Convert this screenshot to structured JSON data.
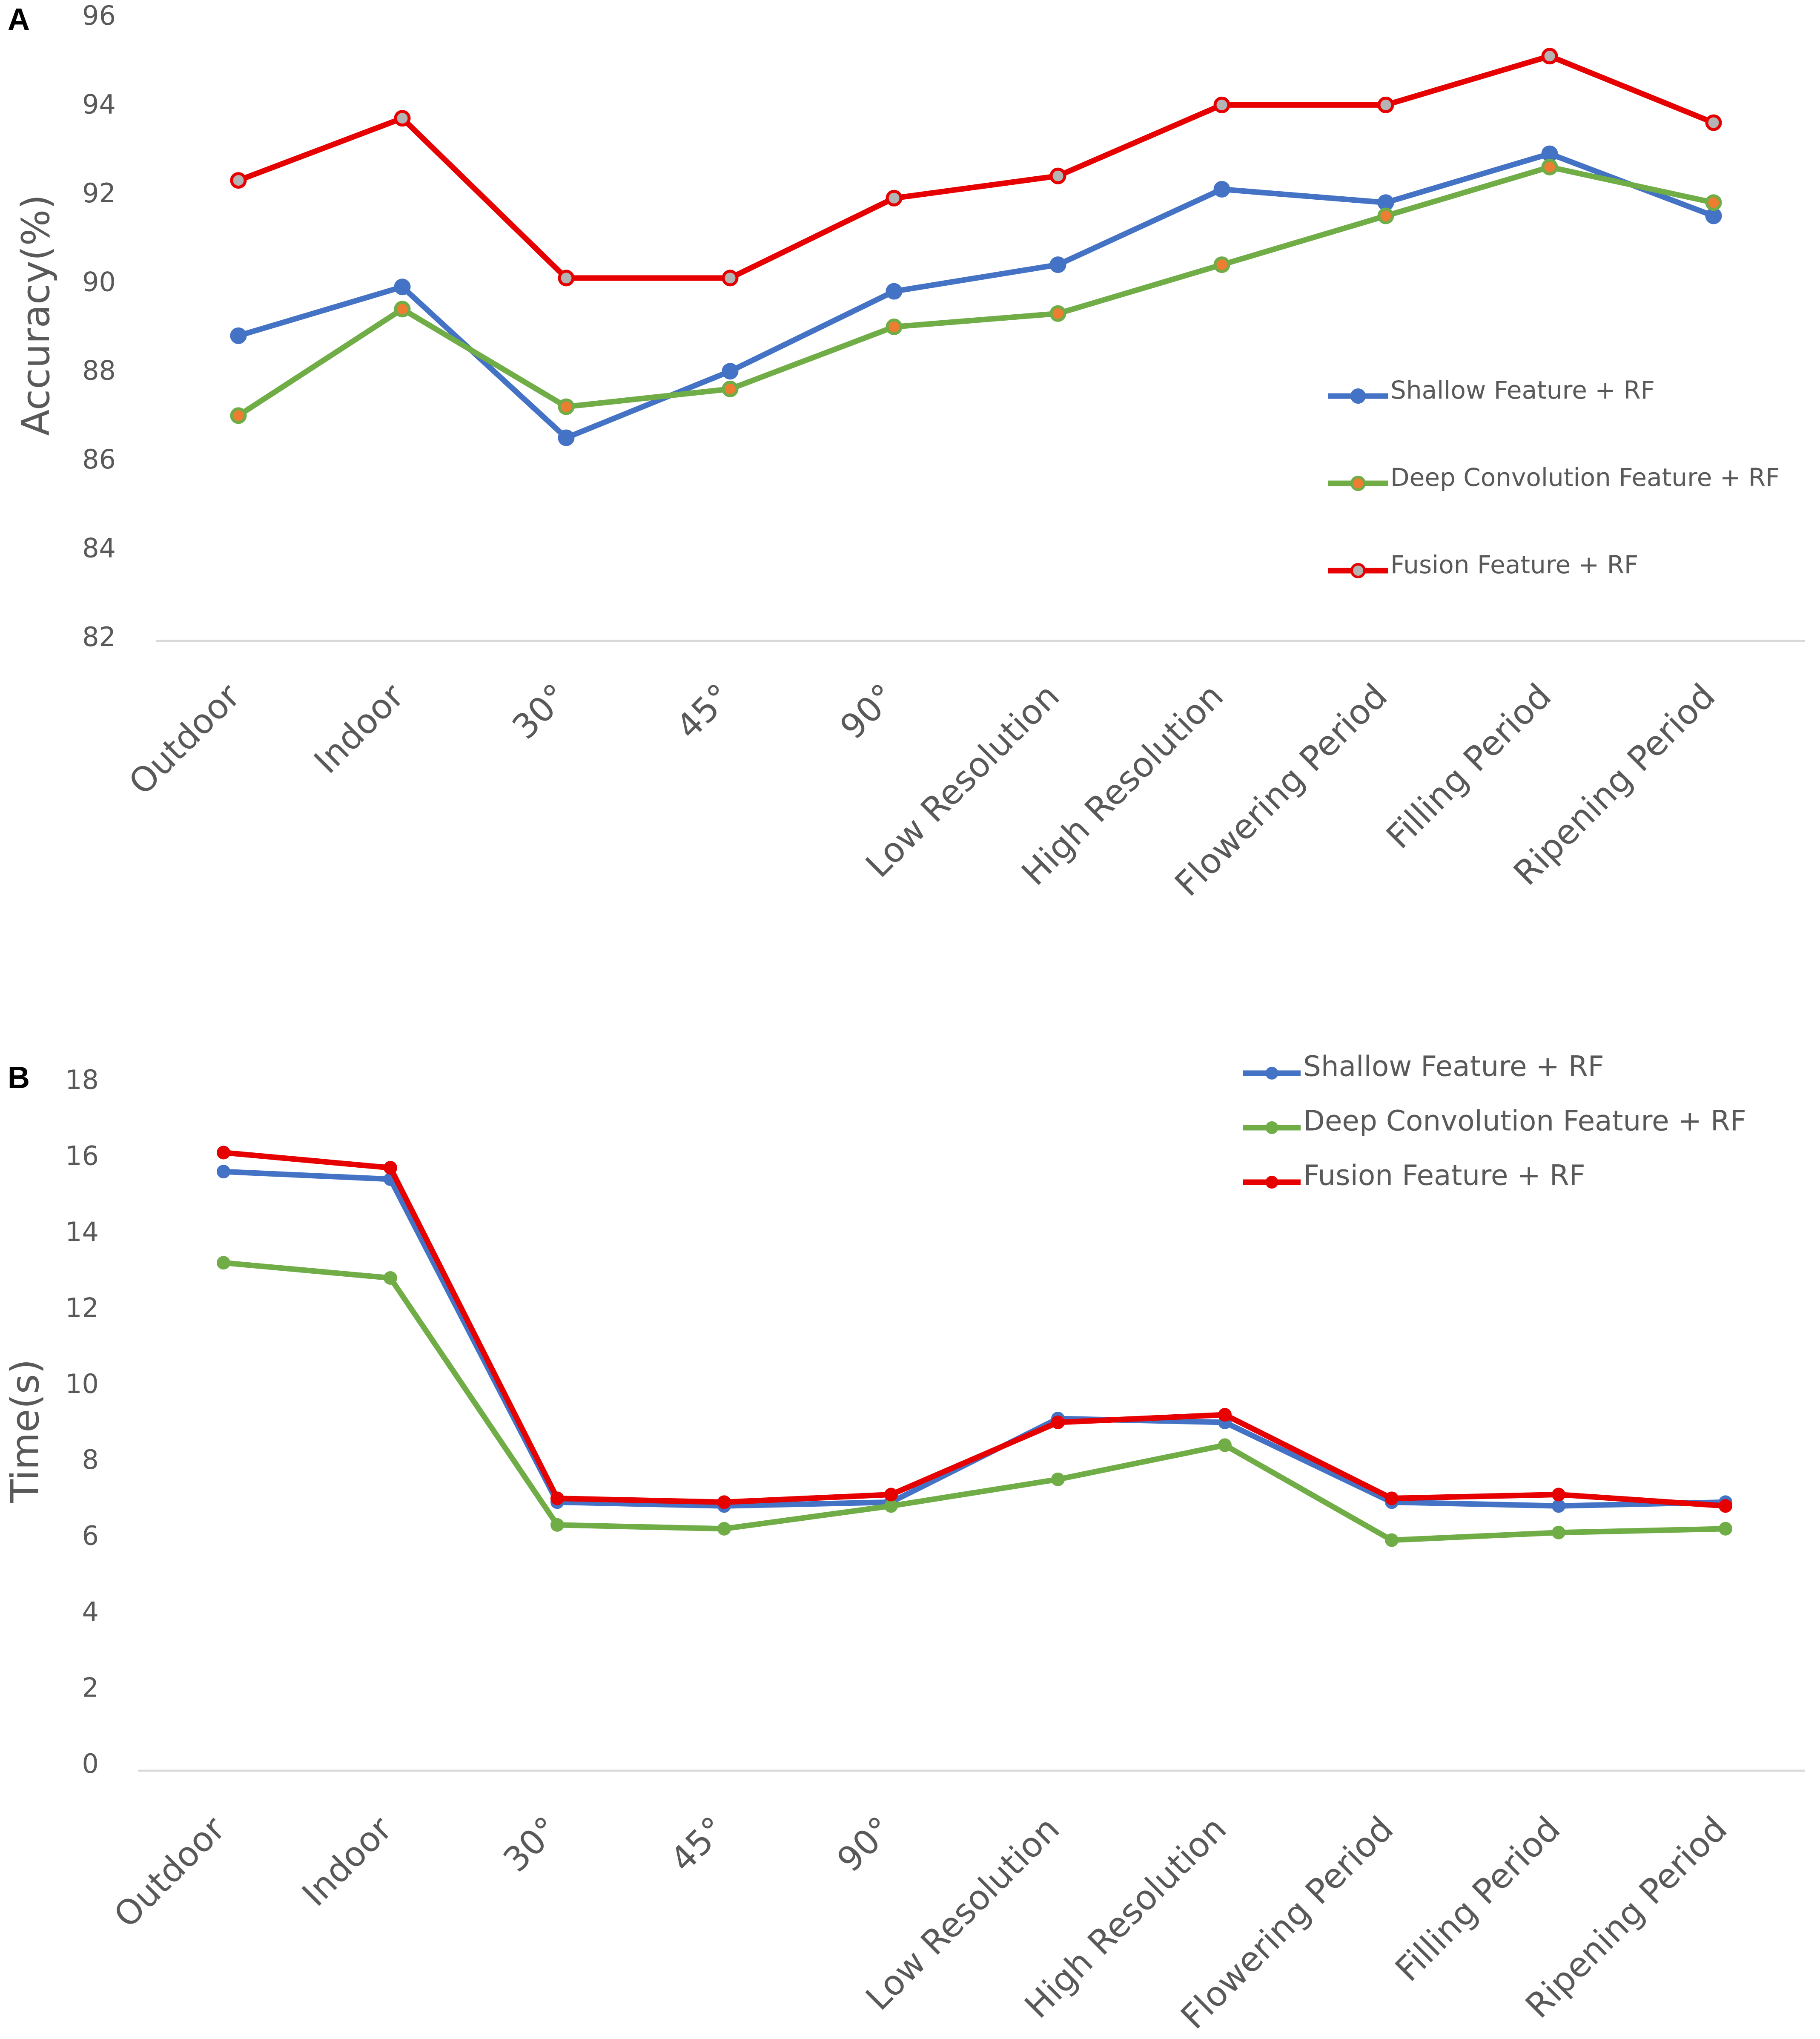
{
  "chart_data": [
    {
      "panel": "A",
      "type": "line",
      "title": "",
      "xlabel": "",
      "ylabel": "Accuracy(%)",
      "ylim": [
        82,
        96
      ],
      "yticks": [
        82,
        84,
        86,
        88,
        90,
        92,
        94,
        96
      ],
      "grid": false,
      "legend_position": "right",
      "categories": [
        "Outdoor",
        "Indoor",
        "30°",
        "45°",
        "90°",
        "Low Resolution",
        "High Resolution",
        "Flowering Period",
        "Filling Period",
        "Ripening Period"
      ],
      "series": [
        {
          "name": "Shallow Feature + RF",
          "color": "#4472C4",
          "marker_color": "#4472C4",
          "values": [
            88.8,
            89.9,
            86.5,
            88.0,
            89.8,
            90.4,
            92.1,
            91.8,
            92.9,
            91.5
          ]
        },
        {
          "name": "Deep Convolution Feature + RF",
          "color": "#70AD47",
          "marker_color": "#ED7D31",
          "values": [
            87.0,
            89.4,
            87.2,
            87.6,
            89.0,
            89.3,
            90.4,
            91.5,
            92.6,
            91.8
          ]
        },
        {
          "name": "Fusion Feature + RF",
          "color": "#E60000",
          "marker_color": "#B4B4B4",
          "values": [
            92.3,
            93.7,
            90.1,
            90.1,
            91.9,
            92.4,
            94.0,
            94.0,
            95.1,
            93.6
          ]
        }
      ]
    },
    {
      "panel": "B",
      "type": "line",
      "title": "",
      "xlabel": "",
      "ylabel": "Time(s)",
      "ylim": [
        0,
        18
      ],
      "yticks": [
        0,
        2,
        4,
        6,
        8,
        10,
        12,
        14,
        16,
        18
      ],
      "grid": false,
      "legend_position": "top-right",
      "categories": [
        "Outdoor",
        "Indoor",
        "30°",
        "45°",
        "90°",
        "Low Resolution",
        "High Resolution",
        "Flowering Period",
        "Filling Period",
        "Ripening Period"
      ],
      "series": [
        {
          "name": "Shallow Feature + RF",
          "color": "#4472C4",
          "marker_color": "#4472C4",
          "values": [
            15.6,
            15.4,
            6.9,
            6.8,
            6.9,
            9.1,
            9.0,
            6.9,
            6.8,
            6.9
          ]
        },
        {
          "name": "Deep Convolution Feature + RF",
          "color": "#70AD47",
          "marker_color": "#70AD47",
          "values": [
            13.2,
            12.8,
            6.3,
            6.2,
            6.8,
            7.5,
            8.4,
            5.9,
            6.1,
            6.2
          ]
        },
        {
          "name": "Fusion Feature + RF",
          "color": "#E60000",
          "marker_color": "#E60000",
          "values": [
            16.1,
            15.7,
            7.0,
            6.9,
            7.1,
            9.0,
            9.2,
            7.0,
            7.1,
            6.8
          ]
        }
      ]
    }
  ]
}
